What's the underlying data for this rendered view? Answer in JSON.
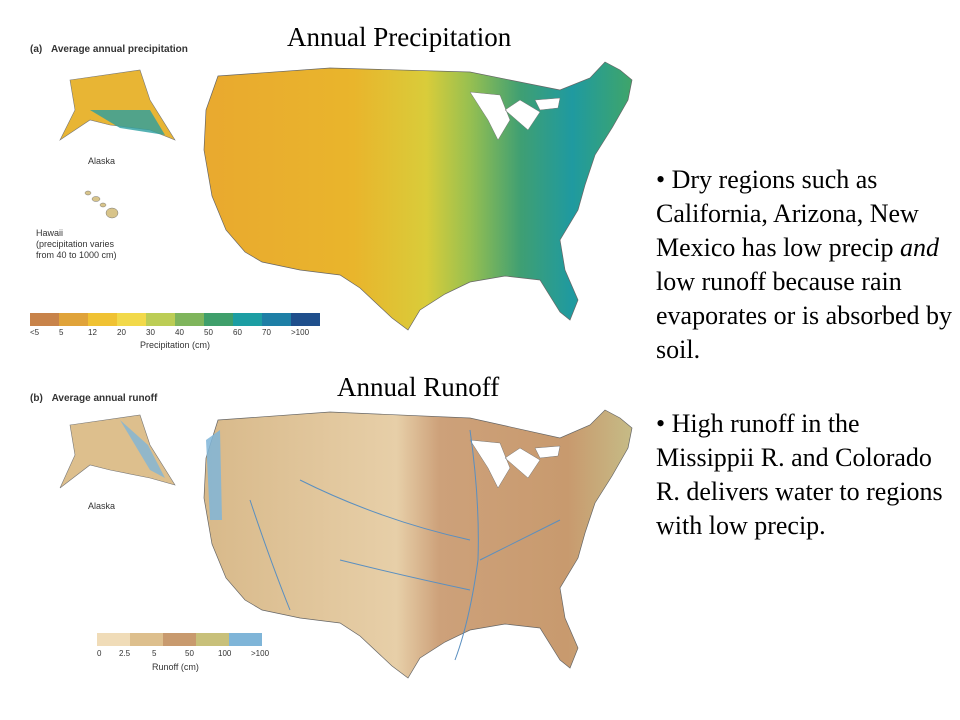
{
  "titles": {
    "precip": "Annual Precipitation",
    "runoff": "Annual Runoff"
  },
  "panel_a": {
    "letter": "(a)",
    "label": "Average annual precipitation",
    "alaska": "Alaska",
    "hawaii_line1": "Hawaii",
    "hawaii_line2": "(precipitation varies",
    "hawaii_line3": "from 40 to 1000 cm)",
    "legend_title": "Precipitation (cm)",
    "legend_ticks": [
      "<5",
      "5",
      "12",
      "20",
      "30",
      "40",
      "50",
      "60",
      "70",
      ">100"
    ],
    "legend_colors": [
      "#c8834a",
      "#e0a33a",
      "#f0c233",
      "#f2d94a",
      "#bccd55",
      "#7fb55c",
      "#3f9f6b",
      "#1c9ea3",
      "#1e7fa6",
      "#1f4f8c"
    ]
  },
  "panel_b": {
    "letter": "(b)",
    "label": "Average annual runoff",
    "alaska": "Alaska",
    "legend_title": "Runoff (cm)",
    "legend_ticks": [
      "0",
      "2.5",
      "5",
      "50",
      "100",
      ">100"
    ],
    "legend_colors": [
      "#f0dcb8",
      "#ddbf8d",
      "#c89a6e",
      "#c8c07a",
      "#7fb5d8"
    ]
  },
  "bullets": {
    "b1_part1": "• Dry regions such as California, Arizona, New Mexico has low precip ",
    "b1_em": "and",
    "b1_part2": " low runoff because rain evaporates or is absorbed by soil.",
    "b2": "• High runoff in the Missippii R. and Colorado R. delivers water to regions with low precip."
  }
}
